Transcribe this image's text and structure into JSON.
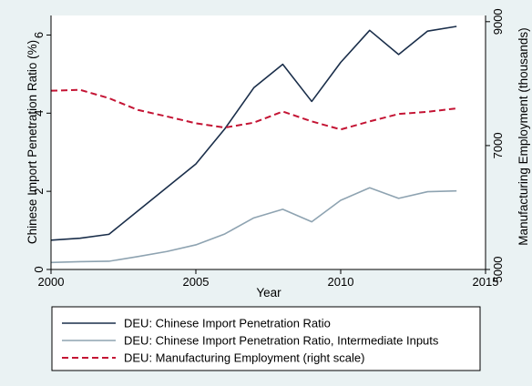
{
  "chart_data": {
    "type": "line",
    "title": "",
    "xlabel": "Year",
    "ylabel_left": "Chinese Import Penetration Ratio (%)",
    "ylabel_right": "Manufacturing Employment (thousands)",
    "x": [
      2000,
      2001,
      2002,
      2003,
      2004,
      2005,
      2006,
      2007,
      2008,
      2009,
      2010,
      2011,
      2012,
      2013,
      2014
    ],
    "xlim": [
      2000,
      2015
    ],
    "x_ticks": [
      "2000",
      "2005",
      "2010",
      "2015"
    ],
    "ylim_left": [
      0,
      6.5
    ],
    "y_left_ticks": [
      "0",
      "2",
      "4",
      "6"
    ],
    "ylim_right": [
      5000,
      9100
    ],
    "y_right_ticks": [
      "5000",
      "7000",
      "9000"
    ],
    "grid": false,
    "legend_position": "bottom",
    "series": [
      {
        "name": "DEU: Chinese Import Penetration Ratio",
        "axis": "left",
        "color": "#1a2e4a",
        "dash": "solid",
        "values": [
          0.75,
          0.8,
          0.9,
          1.5,
          2.1,
          2.7,
          3.6,
          4.65,
          5.25,
          4.3,
          5.3,
          6.12,
          5.5,
          6.1,
          6.22
        ]
      },
      {
        "name": "DEU: Chinese Import Penetration Ratio, Intermediate Inputs",
        "axis": "left",
        "color": "#8ea3b1",
        "dash": "solid",
        "values": [
          0.18,
          0.2,
          0.21,
          0.33,
          0.46,
          0.63,
          0.91,
          1.32,
          1.54,
          1.22,
          1.77,
          2.09,
          1.82,
          1.99,
          2.01
        ]
      },
      {
        "name": "DEU: Manufacturing Employment (right scale)",
        "axis": "right",
        "color": "#c41434",
        "dash": "dashed",
        "values": [
          7885,
          7900,
          7765,
          7575,
          7470,
          7360,
          7290,
          7370,
          7550,
          7390,
          7260,
          7390,
          7510,
          7545,
          7600
        ]
      }
    ]
  }
}
